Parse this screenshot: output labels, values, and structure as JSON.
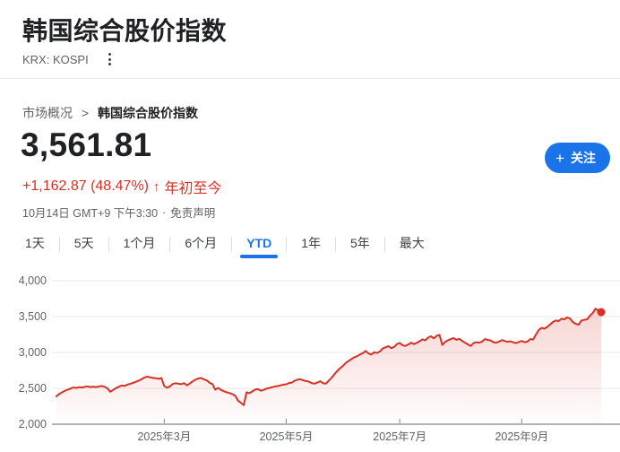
{
  "header": {
    "title": "韩国综合股价指数",
    "ticker": "KRX: KOSPI"
  },
  "breadcrumb": {
    "parent": "市场概况",
    "separator": ">",
    "current": "韩国综合股价指数"
  },
  "quote": {
    "price": "3,561.81",
    "change": "+1,162.87 (48.47%)",
    "arrow": "↑",
    "period": "年初至今",
    "change_color": "#d93025",
    "timestamp": "10月14日 GMT+9 下午3:30",
    "separator": "·",
    "disclaimer": "免责声明"
  },
  "follow_button": {
    "icon": "+",
    "label": "关注",
    "color": "#1a73e8"
  },
  "range_tabs": {
    "active_color": "#1a73e8",
    "items": [
      {
        "label": "1天",
        "active": false
      },
      {
        "label": "5天",
        "active": false
      },
      {
        "label": "1个月",
        "active": false
      },
      {
        "label": "6个月",
        "active": false
      },
      {
        "label": "YTD",
        "active": true
      },
      {
        "label": "1年",
        "active": false
      },
      {
        "label": "5年",
        "active": false
      },
      {
        "label": "最大",
        "active": false
      }
    ]
  },
  "chart_data": {
    "type": "area",
    "title": "KOSPI YTD 2025",
    "line_color": "#d93025",
    "grid": true,
    "legend": "none",
    "y_axis": {
      "min": 2000,
      "max": 4000,
      "ticks": [
        {
          "label": "4,000",
          "value": 4000
        },
        {
          "label": "3,500",
          "value": 3500
        },
        {
          "label": "3,000",
          "value": 3000
        },
        {
          "label": "2,500",
          "value": 2500
        },
        {
          "label": "2,000",
          "value": 2000
        }
      ]
    },
    "x_axis": {
      "day_min": 0,
      "day_max": 192,
      "ticks": [
        {
          "label": "2025年3月",
          "day": 38
        },
        {
          "label": "2025年5月",
          "day": 81
        },
        {
          "label": "2025年7月",
          "day": 121
        },
        {
          "label": "2025年9月",
          "day": 164
        }
      ]
    },
    "series": [
      {
        "name": "KOSPI",
        "last_value": 3561.81,
        "points": [
          [
            0,
            2390
          ],
          [
            1,
            2423
          ],
          [
            2,
            2444
          ],
          [
            3,
            2466
          ],
          [
            4,
            2481
          ],
          [
            5,
            2498
          ],
          [
            6,
            2512
          ],
          [
            7,
            2505
          ],
          [
            8,
            2516
          ],
          [
            9,
            2511
          ],
          [
            10,
            2521
          ],
          [
            11,
            2528
          ],
          [
            12,
            2518
          ],
          [
            13,
            2524
          ],
          [
            14,
            2516
          ],
          [
            15,
            2526
          ],
          [
            16,
            2532
          ],
          [
            17,
            2521
          ],
          [
            18,
            2498
          ],
          [
            19,
            2453
          ],
          [
            20,
            2477
          ],
          [
            21,
            2502
          ],
          [
            22,
            2522
          ],
          [
            23,
            2539
          ],
          [
            24,
            2534
          ],
          [
            25,
            2551
          ],
          [
            26,
            2562
          ],
          [
            27,
            2576
          ],
          [
            28,
            2591
          ],
          [
            29,
            2607
          ],
          [
            30,
            2626
          ],
          [
            31,
            2651
          ],
          [
            32,
            2662
          ],
          [
            33,
            2654
          ],
          [
            34,
            2645
          ],
          [
            35,
            2641
          ],
          [
            36,
            2633
          ],
          [
            37,
            2642
          ],
          [
            38,
            2532
          ],
          [
            39,
            2509
          ],
          [
            40,
            2528
          ],
          [
            41,
            2561
          ],
          [
            42,
            2571
          ],
          [
            43,
            2564
          ],
          [
            44,
            2557
          ],
          [
            45,
            2572
          ],
          [
            46,
            2541
          ],
          [
            47,
            2566
          ],
          [
            48,
            2598
          ],
          [
            49,
            2621
          ],
          [
            50,
            2637
          ],
          [
            51,
            2644
          ],
          [
            52,
            2624
          ],
          [
            53,
            2610
          ],
          [
            54,
            2578
          ],
          [
            55,
            2558
          ],
          [
            56,
            2481
          ],
          [
            57,
            2506
          ],
          [
            58,
            2478
          ],
          [
            59,
            2460
          ],
          [
            60,
            2445
          ],
          [
            61,
            2434
          ],
          [
            62,
            2420
          ],
          [
            63,
            2398
          ],
          [
            64,
            2328
          ],
          [
            65,
            2300
          ],
          [
            66,
            2265
          ],
          [
            67,
            2445
          ],
          [
            68,
            2432
          ],
          [
            69,
            2456
          ],
          [
            70,
            2481
          ],
          [
            71,
            2489
          ],
          [
            72,
            2467
          ],
          [
            73,
            2477
          ],
          [
            74,
            2496
          ],
          [
            75,
            2505
          ],
          [
            76,
            2515
          ],
          [
            77,
            2526
          ],
          [
            78,
            2531
          ],
          [
            79,
            2541
          ],
          [
            80,
            2551
          ],
          [
            81,
            2556
          ],
          [
            82,
            2574
          ],
          [
            83,
            2580
          ],
          [
            84,
            2606
          ],
          [
            85,
            2621
          ],
          [
            86,
            2626
          ],
          [
            87,
            2611
          ],
          [
            88,
            2601
          ],
          [
            89,
            2593
          ],
          [
            90,
            2571
          ],
          [
            91,
            2565
          ],
          [
            92,
            2580
          ],
          [
            93,
            2600
          ],
          [
            94,
            2570
          ],
          [
            95,
            2565
          ],
          [
            96,
            2607
          ],
          [
            97,
            2650
          ],
          [
            98,
            2698
          ],
          [
            99,
            2742
          ],
          [
            100,
            2781
          ],
          [
            101,
            2812
          ],
          [
            102,
            2855
          ],
          [
            103,
            2882
          ],
          [
            104,
            2907
          ],
          [
            105,
            2934
          ],
          [
            106,
            2947
          ],
          [
            107,
            2972
          ],
          [
            108,
            2990
          ],
          [
            109,
            3021
          ],
          [
            110,
            2985
          ],
          [
            111,
            2971
          ],
          [
            112,
            3004
          ],
          [
            113,
            2992
          ],
          [
            114,
            3014
          ],
          [
            115,
            3055
          ],
          [
            116,
            3071
          ],
          [
            117,
            3089
          ],
          [
            118,
            3060
          ],
          [
            119,
            3076
          ],
          [
            120,
            3116
          ],
          [
            121,
            3133
          ],
          [
            122,
            3100
          ],
          [
            123,
            3091
          ],
          [
            124,
            3111
          ],
          [
            125,
            3136
          ],
          [
            126,
            3116
          ],
          [
            127,
            3134
          ],
          [
            128,
            3156
          ],
          [
            129,
            3183
          ],
          [
            130,
            3170
          ],
          [
            131,
            3206
          ],
          [
            132,
            3226
          ],
          [
            133,
            3196
          ],
          [
            134,
            3231
          ],
          [
            135,
            3245
          ],
          [
            136,
            3105
          ],
          [
            137,
            3148
          ],
          [
            138,
            3170
          ],
          [
            139,
            3186
          ],
          [
            140,
            3200
          ],
          [
            141,
            3176
          ],
          [
            142,
            3190
          ],
          [
            143,
            3161
          ],
          [
            144,
            3136
          ],
          [
            145,
            3112
          ],
          [
            146,
            3090
          ],
          [
            147,
            3130
          ],
          [
            148,
            3142
          ],
          [
            149,
            3136
          ],
          [
            150,
            3151
          ],
          [
            151,
            3186
          ],
          [
            152,
            3175
          ],
          [
            153,
            3168
          ],
          [
            154,
            3142
          ],
          [
            155,
            3136
          ],
          [
            156,
            3151
          ],
          [
            157,
            3172
          ],
          [
            158,
            3160
          ],
          [
            159,
            3148
          ],
          [
            160,
            3156
          ],
          [
            161,
            3140
          ],
          [
            162,
            3131
          ],
          [
            163,
            3146
          ],
          [
            164,
            3160
          ],
          [
            165,
            3142
          ],
          [
            166,
            3151
          ],
          [
            167,
            3186
          ],
          [
            168,
            3180
          ],
          [
            169,
            3250
          ],
          [
            170,
            3314
          ],
          [
            171,
            3344
          ],
          [
            172,
            3331
          ],
          [
            173,
            3356
          ],
          [
            174,
            3390
          ],
          [
            175,
            3425
          ],
          [
            176,
            3445
          ],
          [
            177,
            3438
          ],
          [
            178,
            3470
          ],
          [
            179,
            3462
          ],
          [
            180,
            3487
          ],
          [
            181,
            3472
          ],
          [
            182,
            3425
          ],
          [
            183,
            3400
          ],
          [
            184,
            3386
          ],
          [
            185,
            3442
          ],
          [
            186,
            3455
          ],
          [
            187,
            3461
          ],
          [
            188,
            3510
          ],
          [
            189,
            3549
          ],
          [
            190,
            3610
          ],
          [
            191,
            3584
          ],
          [
            192,
            3562
          ]
        ]
      }
    ]
  }
}
